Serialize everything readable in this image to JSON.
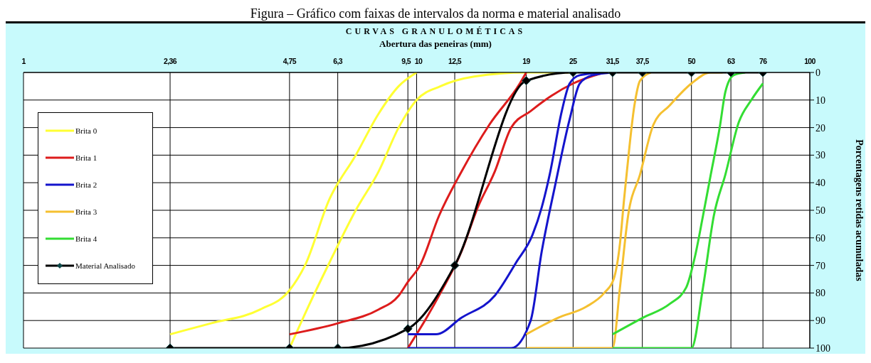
{
  "chart_data": {
    "type": "line",
    "title": "CURVAS GRANULOMÉTICAS",
    "xlabel": "Abertura das peneiras (mm)",
    "ylabel": "Porcentagens retidas acumuladas",
    "annotations": [
      "Figura – Gráfico com faixas de intervalos da norma e material analisado"
    ],
    "log": "x",
    "xlim": [
      1,
      100
    ],
    "xticks": [
      1,
      {
        "value": 2.36,
        "label": "2,36"
      },
      {
        "value": 4.75,
        "label": "4,75"
      },
      {
        "value": 6.3,
        "label": "6,3"
      },
      {
        "value": 9.5,
        "label": "9,5"
      },
      10,
      {
        "value": 12.5,
        "label": "12,5"
      },
      19,
      25,
      {
        "value": 31.5,
        "label": "31,5"
      },
      {
        "value": 37.5,
        "label": "37,5"
      },
      50,
      63,
      76,
      100
    ],
    "ylim": [
      100,
      0
    ],
    "yticks": [
      0,
      10,
      20,
      30,
      40,
      50,
      60,
      70,
      80,
      90,
      100
    ],
    "grid": true,
    "legend": "left",
    "series": [
      {
        "name": "Brita 0",
        "color": "#ffff33",
        "x": [
          2.36,
          3,
          4,
          4.75,
          5.2,
          6,
          7,
          8,
          9,
          10
        ],
        "values": [
          95,
          91,
          86,
          79,
          70,
          46,
          30,
          15,
          5,
          0
        ]
      },
      {
        "color": "#ffff33",
        "x": [
          4.75,
          5.3,
          6,
          7,
          8,
          9,
          10,
          11.5,
          14,
          19,
          25
        ],
        "values": [
          100,
          85,
          69,
          50,
          36,
          20,
          10,
          5,
          1.5,
          0,
          0
        ]
      },
      {
        "name": "Brita 1",
        "color": "#dd1c1c",
        "x": [
          4.75,
          6.3,
          8,
          9,
          9.5,
          10.2,
          11.4,
          13,
          15.3,
          18.3,
          19
        ],
        "values": [
          95,
          91,
          86,
          81,
          76,
          70,
          52,
          36,
          19,
          4,
          0
        ]
      },
      {
        "color": "#dd1c1c",
        "x": [
          9.5,
          10.6,
          11.5,
          13,
          14.3,
          15.8,
          17.4,
          19.5,
          22,
          25,
          30
        ],
        "values": [
          100,
          89,
          80,
          65,
          49,
          36,
          20,
          14,
          8.5,
          4,
          0
        ]
      },
      {
        "name": "Brita 2",
        "color": "#1414cc",
        "x": [
          9.5,
          11.2,
          13,
          15.8,
          17.9,
          19.7,
          20.8,
          21.8,
          23.4,
          24.5,
          26,
          30
        ],
        "values": [
          95,
          95,
          89,
          81,
          69,
          59,
          49,
          37,
          14,
          4,
          1,
          0
        ]
      },
      {
        "color": "#1414cc",
        "x": [
          9.5,
          17.4,
          19.5,
          20.8,
          22.5,
          24.5,
          26,
          28,
          31.7
        ],
        "values": [
          100,
          100,
          90,
          65,
          41,
          17,
          4,
          1,
          0
        ]
      },
      {
        "name": "Brita 3",
        "color": "#f5c030",
        "x": [
          19,
          22.9,
          27,
          30,
          31.7,
          32.9,
          33.7,
          34.2,
          35.8,
          37,
          39.4
        ],
        "values": [
          95,
          89,
          85,
          80,
          75,
          62,
          46,
          37,
          12,
          3,
          0
        ]
      },
      {
        "color": "#f5c030",
        "x": [
          19,
          25,
          31.5,
          32.9,
          34.5,
          37,
          40,
          44,
          50,
          56,
          60
        ],
        "values": [
          100,
          100,
          100,
          78,
          52,
          37,
          19,
          12,
          4,
          0,
          0
        ]
      },
      {
        "name": "Brita 4",
        "color": "#33dd33",
        "x": [
          31.5,
          37.6,
          44,
          48.5,
          51,
          53.5,
          56,
          59,
          61,
          64,
          68.5
        ],
        "values": [
          95,
          89,
          84,
          78,
          67,
          52,
          37,
          20,
          7,
          1,
          0
        ]
      },
      {
        "color": "#33dd33",
        "x": [
          31.5,
          40,
          50,
          53.5,
          57,
          61,
          66,
          71,
          76
        ],
        "values": [
          100,
          100,
          100,
          78,
          52,
          37,
          18,
          10,
          4
        ]
      },
      {
        "name": "Material Analisado",
        "color": "#000000",
        "marker": "diamond",
        "x": [
          2.36,
          4.75,
          6.3,
          9.5,
          12.5,
          19,
          25,
          31.5,
          37.5,
          50,
          63,
          76
        ],
        "values": [
          100,
          100,
          100,
          93,
          70,
          3,
          0,
          0,
          0,
          0,
          0,
          0
        ]
      }
    ]
  }
}
